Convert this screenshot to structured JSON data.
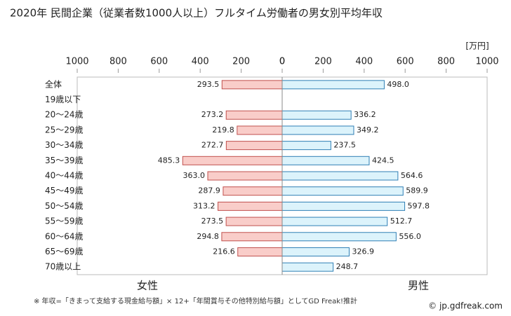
{
  "chart_data": {
    "type": "butterfly-bar",
    "title": "2020年 民間企業（従業者数1000人以上）フルタイム労働者の男女別平均年収",
    "unit": "[万円]",
    "categories": [
      "全体",
      "19歳以下",
      "20～24歳",
      "25～29歳",
      "30～34歳",
      "35～39歳",
      "40～44歳",
      "45～49歳",
      "50～54歳",
      "55～59歳",
      "60～64歳",
      "65～69歳",
      "70歳以上"
    ],
    "series": [
      {
        "name": "女性",
        "color": "#f9cdc9",
        "edge": "#c0504d",
        "text_color": "#c0504d",
        "values": [
          293.5,
          null,
          273.2,
          219.8,
          272.7,
          485.3,
          363.0,
          287.9,
          313.2,
          273.5,
          294.8,
          216.6,
          null
        ],
        "value_labels": [
          "293.5",
          null,
          "273.2",
          "219.8",
          "272.7",
          "485.3",
          "363.0",
          "287.9",
          "313.2",
          "273.5",
          "294.8",
          "216.6",
          null
        ]
      },
      {
        "name": "男性",
        "color": "#dcf3fb",
        "edge": "#2f7fb5",
        "text_color": "#2f6fc0",
        "values": [
          498.0,
          null,
          336.2,
          349.2,
          237.5,
          424.5,
          564.6,
          589.9,
          597.8,
          512.7,
          556.0,
          326.9,
          248.7
        ],
        "value_labels": [
          "498.0",
          null,
          "336.2",
          "349.2",
          "237.5",
          "424.5",
          "564.6",
          "589.9",
          "597.8",
          "512.7",
          "556.0",
          "326.9",
          "248.7"
        ]
      }
    ],
    "xlim": [
      0,
      1000
    ],
    "xticks": [
      0,
      200,
      400,
      600,
      800,
      1000
    ],
    "footnote": "※ 年収=「きまって支給する現金給与額」× 12+「年間賞与その他特別給与額」としてGD Freak!推計",
    "source": "© jp.gdfreak.com"
  }
}
